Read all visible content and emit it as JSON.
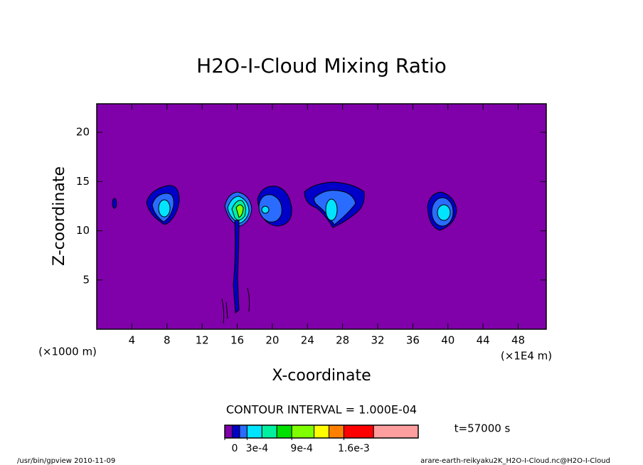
{
  "chart_data": {
    "type": "contour",
    "title": "H2O-I-Cloud Mixing Ratio",
    "x_label": "X-coordinate",
    "y_label": "Z-coordinate",
    "x_unit_left": "(×1000 m)",
    "x_unit_right": "(×1E4 m)",
    "xlim": [
      0,
      51.2
    ],
    "xticks": [
      4,
      8,
      12,
      16,
      20,
      24,
      28,
      32,
      36,
      40,
      44,
      48
    ],
    "ylim": [
      0,
      22.9
    ],
    "yticks": [
      5,
      10,
      15,
      20
    ],
    "contour_interval": "CONTOUR INTERVAL = 1.000E-04",
    "time_label": "t=57000 s",
    "footer_left": "/usr/bin/gpview  2010-11-09",
    "footer_right": "arare-earth-reikyaku2K_H2O-I-Cloud.nc@H2O-I-Cloud",
    "colorbar": {
      "levels": [
        0,
        0.0001,
        0.0002,
        0.0003,
        0.0005,
        0.0007,
        0.0009,
        0.0012,
        0.0014,
        0.0016,
        0.002,
        0.0026
      ],
      "colors": [
        "#8000aa",
        "#0000c8",
        "#2a6cff",
        "#00e4ff",
        "#00f0a0",
        "#00e000",
        "#80ff00",
        "#ffff00",
        "#ff8000",
        "#ff0000",
        "#ff9e9e"
      ],
      "ticks": [
        0,
        {
          "value": 0.0003,
          "label": "3e-4"
        },
        {
          "value": 0.0009,
          "label": "9e-4"
        },
        {
          "value": 0.0016,
          "label": "1.6e-3"
        }
      ]
    }
  }
}
